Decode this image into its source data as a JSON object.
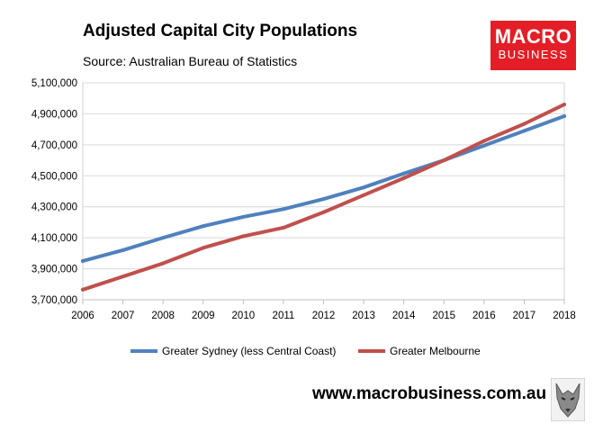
{
  "header": {
    "title": "Adjusted Capital City Populations",
    "subtitle": "Source: Australian Bureau of Statistics"
  },
  "logo": {
    "line1": "MACRO",
    "line2": "BUSINESS",
    "color": "#e41e26",
    "icon": "wolf-icon"
  },
  "footer": {
    "website": "www.macrobusiness.com.au"
  },
  "chart_data": {
    "type": "line",
    "title": "Adjusted Capital City Populations",
    "xlabel": "",
    "ylabel": "",
    "x": [
      2006,
      2007,
      2008,
      2009,
      2010,
      2011,
      2012,
      2013,
      2014,
      2015,
      2016,
      2017,
      2018
    ],
    "x_tick_labels": [
      "2006",
      "2007",
      "2008",
      "2009",
      "2010",
      "2011",
      "2012",
      "2013",
      "2014",
      "2015",
      "2016",
      "2017",
      "2018"
    ],
    "ylim": [
      3700000,
      5100000
    ],
    "y_ticks": [
      3700000,
      3900000,
      4100000,
      4300000,
      4500000,
      4700000,
      4900000,
      5100000
    ],
    "y_tick_labels": [
      "3,700,000",
      "3,900,000",
      "4,100,000",
      "4,300,000",
      "4,500,000",
      "4,700,000",
      "4,900,000",
      "5,100,000"
    ],
    "grid": true,
    "legend_position": "bottom",
    "series": [
      {
        "name": "Greater Sydney (less Central Coast)",
        "color": "#4f81bd",
        "values": [
          3950000,
          4020000,
          4100000,
          4175000,
          4235000,
          4285000,
          4350000,
          4425000,
          4515000,
          4600000,
          4695000,
          4790000,
          4885000
        ]
      },
      {
        "name": "Greater Melbourne",
        "color": "#c0504d",
        "values": [
          3765000,
          3850000,
          3935000,
          4035000,
          4110000,
          4165000,
          4265000,
          4375000,
          4485000,
          4600000,
          4725000,
          4835000,
          4960000
        ]
      }
    ]
  }
}
